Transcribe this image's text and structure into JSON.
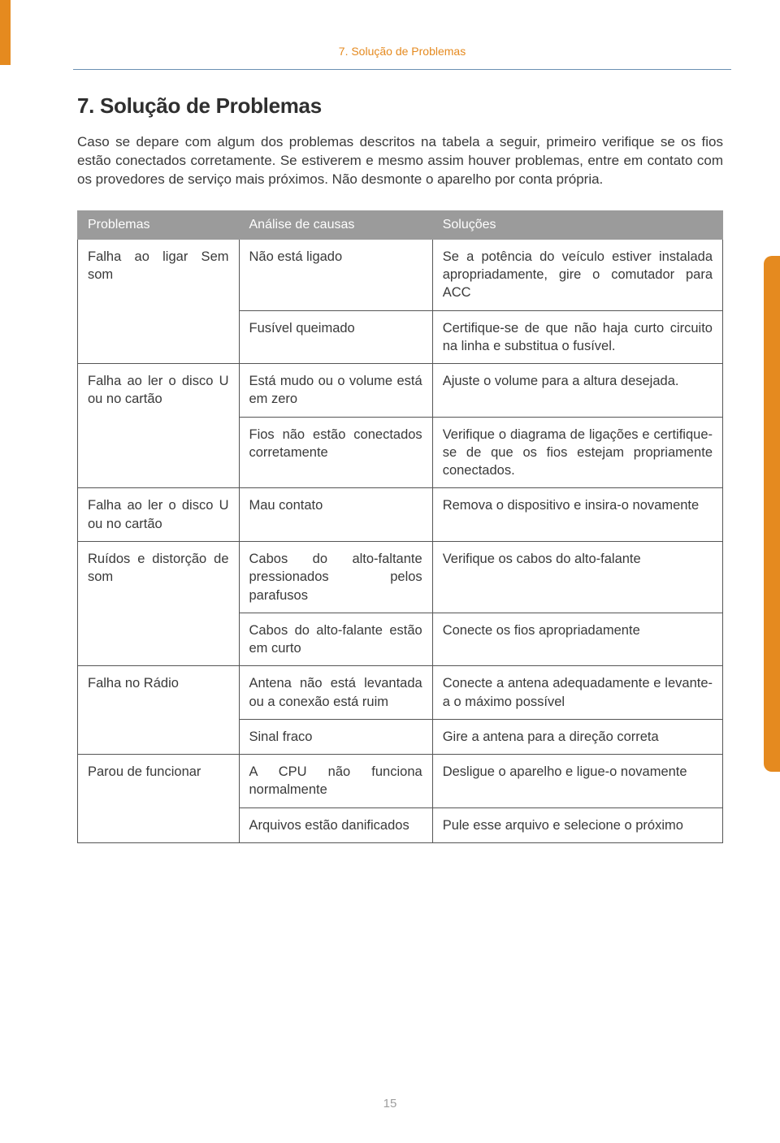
{
  "colors": {
    "accent": "#e58a1f",
    "header_bg": "#9b9b9b",
    "header_text": "#ffffff",
    "rule": "#6b8fb3",
    "text": "#3a3a3a",
    "page_num": "#9e9e9e",
    "border": "#555555",
    "background": "#ffffff"
  },
  "layout": {
    "col_widths_pct": [
      25,
      30,
      45
    ],
    "title_fontsize": 26,
    "body_fontsize": 17,
    "cell_fontsize": 16.5
  },
  "header": "7. Solução de Problemas",
  "title": "7. Solução de Problemas",
  "intro": "Caso se depare com algum dos problemas descritos na tabela a seguir, primeiro verifique se os fios estão conectados corretamente. Se estiverem e mesmo assim houver problemas, entre em contato com os provedores de serviço mais próximos. Não desmonte o aparelho por conta própria.",
  "table": {
    "type": "table",
    "columns": [
      "Problemas",
      "Análise de causas",
      "Soluções"
    ],
    "groups": [
      {
        "problem": "Falha ao ligar Sem som",
        "rows": [
          {
            "cause": "Não está ligado",
            "solution": "Se a potência do veículo estiver instalada apropriadamente, gire o comutador para ACC"
          },
          {
            "cause": "Fusível queimado",
            "solution": "Certifique-se de que não haja curto circuito na linha e substitua o fusível."
          }
        ]
      },
      {
        "problem": "Falha ao ler o disco U ou no cartão",
        "rows": [
          {
            "cause": "Está mudo ou o volume está em zero",
            "solution": "Ajuste o volume para a altura desejada."
          },
          {
            "cause": "Fios não estão conectados corretamente",
            "solution": "Verifique o diagrama de ligações e certifique-se de que os fios estejam propriamente conectados."
          }
        ]
      },
      {
        "problem": "Falha ao ler o disco U ou no cartão",
        "rows": [
          {
            "cause": "Mau contato",
            "solution": "Remova o dispositivo e insira-o novamente"
          }
        ]
      },
      {
        "problem": "Ruídos e distorção de som",
        "rows": [
          {
            "cause": "Cabos do alto-faltante pressionados pelos parafusos",
            "solution": "Verifique os cabos do alto-falante"
          },
          {
            "cause": "Cabos do alto-falante estão em curto",
            "solution": "Conecte os fios apropriadamente"
          }
        ]
      },
      {
        "problem": "Falha no Rádio",
        "rows": [
          {
            "cause": "Antena não está levantada ou a conexão está ruim",
            "solution": "Conecte a antena adequadamente e levante-a o máximo possível"
          },
          {
            "cause": "Sinal fraco",
            "solution": "Gire a antena para a direção correta"
          }
        ]
      },
      {
        "problem": "Parou de funcionar",
        "rows": [
          {
            "cause": "A CPU não funciona normalmente",
            "solution": "Desligue o aparelho e ligue-o novamente"
          },
          {
            "cause": "Arquivos estão danificados",
            "solution": "Pule esse arquivo e selecione o próximo"
          }
        ]
      }
    ]
  },
  "page_number": "15"
}
